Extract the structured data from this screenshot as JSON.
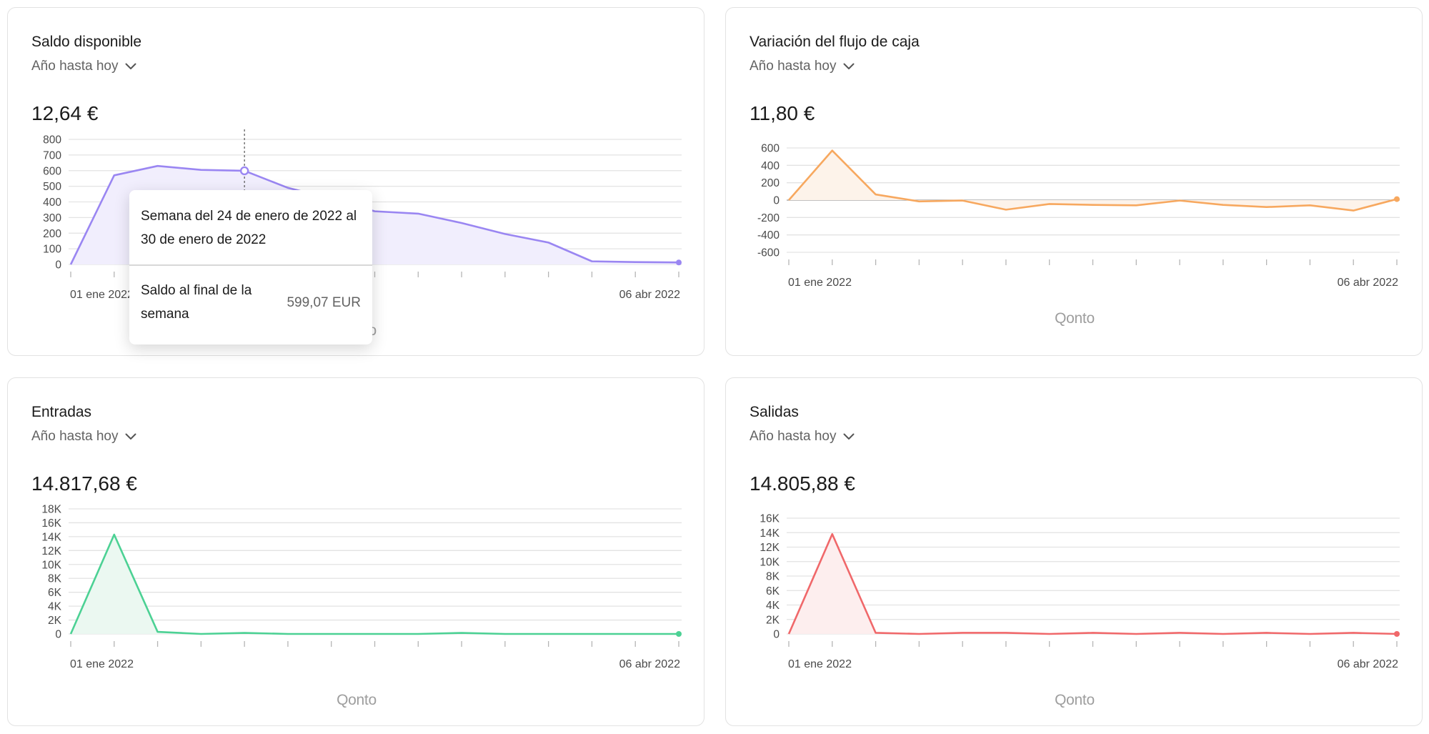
{
  "cards": [
    {
      "title": "Saldo disponible",
      "period": "Año hasta hoy",
      "amount": "12,64 €",
      "color": "#9a86f2",
      "fill": "#f1eefd",
      "date_start": "01 ene 2022",
      "date_end": "06 abr 2022",
      "watermark": "Qonto"
    },
    {
      "title": "Variación del flujo de caja",
      "period": "Año hasta hoy",
      "amount": "11,80 €",
      "color": "#f7a85f",
      "fill": "#fdf3ea",
      "date_start": "01 ene 2022",
      "date_end": "06 abr 2022",
      "watermark": "Qonto"
    },
    {
      "title": "Entradas",
      "period": "Año hasta hoy",
      "amount": "14.817,68 €",
      "color": "#4cd194",
      "fill": "#ebf8f1",
      "date_start": "01 ene 2022",
      "date_end": "06 abr 2022",
      "watermark": "Qonto"
    },
    {
      "title": "Salidas",
      "period": "Año hasta hoy",
      "amount": "14.805,88 €",
      "color": "#f0686a",
      "fill": "#fdeeee",
      "date_start": "01 ene 2022",
      "date_end": "06 abr 2022",
      "watermark": "Qonto"
    }
  ],
  "tooltip": {
    "heading": "Semana del 24 de enero de 2022 al 30 de enero de 2022",
    "label": "Saldo al final de la semana",
    "value": "599,07 EUR"
  },
  "chart_data": [
    {
      "type": "area",
      "title": "Saldo disponible",
      "ylim": [
        0,
        800
      ],
      "yticks": [
        800,
        700,
        600,
        500,
        400,
        300,
        200,
        100,
        0
      ],
      "ytick_labels": [
        "800",
        "700",
        "600",
        "500",
        "400",
        "300",
        "200",
        "100",
        "0"
      ],
      "values": [
        0,
        570,
        630,
        605,
        599.07,
        490,
        420,
        340,
        325,
        265,
        195,
        140,
        20,
        15,
        12.64
      ],
      "highlight_index": 4,
      "grid": true
    },
    {
      "type": "area",
      "title": "Variación del flujo de caja",
      "ylim": [
        -600,
        600
      ],
      "yticks": [
        600,
        400,
        200,
        0,
        -200,
        -400,
        -600
      ],
      "ytick_labels": [
        "600",
        "400",
        "200",
        "0",
        "-200",
        "-400",
        "-600"
      ],
      "values": [
        0,
        570,
        65,
        -15,
        -5,
        -110,
        -45,
        -55,
        -60,
        -5,
        -55,
        -80,
        -60,
        -120,
        11.8
      ],
      "grid": true
    },
    {
      "type": "area",
      "title": "Entradas",
      "ylim": [
        0,
        18000
      ],
      "yticks": [
        18000,
        16000,
        14000,
        12000,
        10000,
        8000,
        6000,
        4000,
        2000,
        0
      ],
      "ytick_labels": [
        "18K",
        "16K",
        "14K",
        "12K",
        "10K",
        "8K",
        "6K",
        "4K",
        "2K",
        "0"
      ],
      "values": [
        0,
        14300,
        300,
        0,
        150,
        0,
        0,
        0,
        0,
        150,
        0,
        0,
        0,
        0,
        0
      ],
      "grid": true
    },
    {
      "type": "area",
      "title": "Salidas",
      "ylim": [
        0,
        16000
      ],
      "yticks": [
        16000,
        14000,
        12000,
        10000,
        8000,
        6000,
        4000,
        2000,
        0
      ],
      "ytick_labels": [
        "16K",
        "14K",
        "12K",
        "10K",
        "8K",
        "6K",
        "4K",
        "2K",
        "0"
      ],
      "values": [
        0,
        13800,
        150,
        0,
        150,
        150,
        0,
        150,
        0,
        150,
        0,
        150,
        0,
        150,
        0
      ],
      "grid": true
    }
  ]
}
